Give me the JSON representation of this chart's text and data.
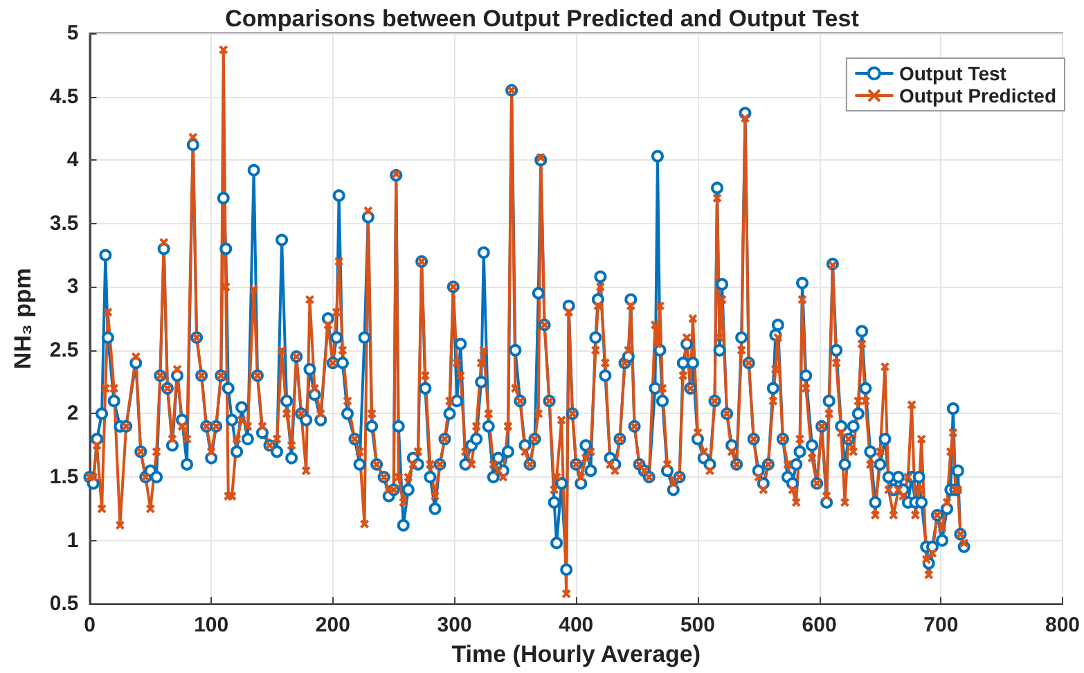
{
  "chart_data": {
    "type": "line",
    "title": "Comparisons between Output Predicted and Output Test",
    "xlabel": "Time (Hourly Average)",
    "ylabel": "NH₃ ppm",
    "x": [
      0,
      3,
      6,
      10,
      13,
      15,
      20,
      25,
      30,
      38,
      42,
      46,
      50,
      55,
      58,
      61,
      64,
      68,
      72,
      76,
      80,
      85,
      88,
      92,
      96,
      100,
      104,
      108,
      110,
      112,
      114,
      117,
      121,
      125,
      130,
      135,
      138,
      142,
      148,
      154,
      158,
      162,
      166,
      170,
      174,
      178,
      181,
      185,
      190,
      196,
      200,
      203,
      205,
      208,
      212,
      218,
      222,
      226,
      229,
      232,
      236,
      242,
      246,
      250,
      252,
      254,
      258,
      262,
      266,
      270,
      273,
      276,
      280,
      284,
      288,
      292,
      296,
      299,
      302,
      305,
      309,
      314,
      318,
      322,
      324,
      328,
      332,
      336,
      340,
      344,
      347,
      350,
      354,
      358,
      362,
      366,
      369,
      371,
      374,
      378,
      382,
      384,
      388,
      392,
      394,
      397,
      400,
      404,
      408,
      412,
      416,
      418,
      420,
      424,
      428,
      432,
      436,
      440,
      443,
      445,
      448,
      452,
      456,
      460,
      465,
      467,
      469,
      471,
      475,
      480,
      485,
      488,
      491,
      494,
      496,
      500,
      505,
      510,
      514,
      516,
      518,
      520,
      524,
      528,
      532,
      536,
      539,
      542,
      546,
      550,
      554,
      558,
      562,
      564,
      566,
      570,
      574,
      578,
      581,
      584,
      586,
      589,
      594,
      598,
      602,
      606,
      608,
      611,
      614,
      618,
      621,
      624,
      628,
      632,
      635,
      638,
      642,
      646,
      650,
      654,
      657,
      661,
      665,
      669,
      673,
      676,
      679,
      682,
      684,
      688,
      690,
      693,
      697,
      701,
      705,
      708,
      710,
      712,
      714,
      716,
      719
    ],
    "series": [
      {
        "name": "Output Test",
        "color": "#0072bd",
        "marker": "circle",
        "values": [
          1.5,
          1.45,
          1.8,
          2.0,
          3.25,
          2.6,
          2.1,
          1.9,
          1.9,
          2.4,
          1.7,
          1.5,
          1.55,
          1.5,
          2.3,
          3.3,
          2.2,
          1.75,
          2.3,
          1.95,
          1.6,
          4.12,
          2.6,
          2.3,
          1.9,
          1.65,
          1.9,
          2.3,
          3.7,
          3.3,
          2.2,
          1.95,
          1.7,
          2.05,
          1.8,
          3.92,
          2.3,
          1.85,
          1.75,
          1.7,
          3.37,
          2.1,
          1.65,
          2.45,
          2.0,
          1.95,
          2.35,
          2.15,
          1.95,
          2.75,
          2.4,
          2.6,
          3.72,
          2.4,
          2.0,
          1.8,
          1.6,
          2.6,
          3.55,
          1.9,
          1.6,
          1.5,
          1.35,
          1.4,
          3.88,
          1.9,
          1.12,
          1.4,
          1.65,
          1.6,
          3.2,
          2.2,
          1.5,
          1.25,
          1.6,
          1.8,
          2.0,
          3.0,
          2.1,
          2.55,
          1.6,
          1.75,
          1.8,
          2.25,
          3.27,
          1.9,
          1.5,
          1.65,
          1.55,
          1.7,
          4.55,
          2.5,
          2.1,
          1.75,
          1.6,
          1.8,
          2.95,
          4.0,
          2.7,
          2.1,
          1.3,
          0.98,
          1.45,
          0.77,
          2.85,
          2.0,
          1.6,
          1.45,
          1.75,
          1.55,
          2.6,
          2.9,
          3.08,
          2.3,
          1.65,
          1.6,
          1.8,
          2.4,
          2.45,
          2.9,
          1.9,
          1.6,
          1.55,
          1.5,
          2.2,
          4.03,
          2.5,
          2.1,
          1.55,
          1.4,
          1.5,
          2.4,
          2.55,
          2.2,
          2.4,
          1.8,
          1.65,
          1.6,
          2.1,
          3.78,
          2.5,
          3.02,
          2.0,
          1.75,
          1.6,
          2.6,
          4.37,
          2.4,
          1.8,
          1.55,
          1.45,
          1.6,
          2.2,
          2.62,
          2.7,
          1.8,
          1.5,
          1.45,
          1.6,
          1.7,
          3.03,
          2.3,
          1.75,
          1.45,
          1.9,
          1.3,
          2.1,
          3.18,
          2.5,
          1.9,
          1.6,
          1.8,
          1.9,
          2.0,
          2.65,
          2.2,
          1.7,
          1.3,
          1.6,
          1.8,
          1.5,
          1.4,
          1.5,
          1.4,
          1.3,
          1.5,
          1.3,
          1.5,
          1.3,
          0.95,
          0.82,
          0.95,
          1.2,
          1.0,
          1.25,
          1.4,
          2.04,
          1.4,
          1.55,
          1.05,
          0.95
        ]
      },
      {
        "name": "Output Predicted",
        "color": "#d95319",
        "marker": "cross",
        "values": [
          1.5,
          1.5,
          1.75,
          1.25,
          2.2,
          2.8,
          2.2,
          1.12,
          1.9,
          2.45,
          1.7,
          1.5,
          1.25,
          1.7,
          2.3,
          3.35,
          2.2,
          1.8,
          2.35,
          1.9,
          1.8,
          4.18,
          2.6,
          2.3,
          1.9,
          1.7,
          1.9,
          2.3,
          4.87,
          3.0,
          1.35,
          1.35,
          1.8,
          1.95,
          1.9,
          2.98,
          2.3,
          1.9,
          1.75,
          1.8,
          2.5,
          2.0,
          1.75,
          2.45,
          2.0,
          1.55,
          2.9,
          2.2,
          2.0,
          2.7,
          2.4,
          2.8,
          3.2,
          2.5,
          2.1,
          1.8,
          1.7,
          1.13,
          3.6,
          2.0,
          1.6,
          1.5,
          1.4,
          1.4,
          3.89,
          1.5,
          1.3,
          1.5,
          1.6,
          1.7,
          3.2,
          2.3,
          1.6,
          1.35,
          1.6,
          1.8,
          2.1,
          3.0,
          2.4,
          2.3,
          1.7,
          1.6,
          1.9,
          2.4,
          2.5,
          2.0,
          1.6,
          1.55,
          1.5,
          1.9,
          4.55,
          2.2,
          2.1,
          1.7,
          1.6,
          1.8,
          2.0,
          4.02,
          2.7,
          2.1,
          1.4,
          1.5,
          1.95,
          0.58,
          2.8,
          2.0,
          1.6,
          1.5,
          1.65,
          1.7,
          2.5,
          2.85,
          3.0,
          2.4,
          1.6,
          1.55,
          1.8,
          2.4,
          2.5,
          2.85,
          1.9,
          1.6,
          1.55,
          1.5,
          2.7,
          2.55,
          2.85,
          2.2,
          1.6,
          1.45,
          1.5,
          2.3,
          2.6,
          2.2,
          2.75,
          1.85,
          1.7,
          1.55,
          2.1,
          3.7,
          2.6,
          2.9,
          2.0,
          1.7,
          1.6,
          2.5,
          4.33,
          2.4,
          1.8,
          1.5,
          1.4,
          1.6,
          2.1,
          2.35,
          2.6,
          1.8,
          1.6,
          1.4,
          1.3,
          1.8,
          2.9,
          2.2,
          1.65,
          1.45,
          1.9,
          1.35,
          2.0,
          3.17,
          2.4,
          1.85,
          1.3,
          1.8,
          1.7,
          2.1,
          2.55,
          2.1,
          1.6,
          1.2,
          1.7,
          2.37,
          1.4,
          1.2,
          1.4,
          1.35,
          1.5,
          2.07,
          1.2,
          1.4,
          1.8,
          0.85,
          0.73,
          0.9,
          1.2,
          1.1,
          1.3,
          1.7,
          1.85,
          1.4,
          1.4,
          1.05,
          0.98
        ]
      }
    ],
    "xlim": [
      0,
      800
    ],
    "xticks": [
      0,
      100,
      200,
      300,
      400,
      500,
      600,
      700,
      800
    ],
    "ylim": [
      0.5,
      5
    ],
    "yticks": [
      0.5,
      1,
      1.5,
      2,
      2.5,
      3,
      3.5,
      4,
      4.5,
      5
    ],
    "grid": true,
    "legend": "top right",
    "line_style": "solid"
  }
}
